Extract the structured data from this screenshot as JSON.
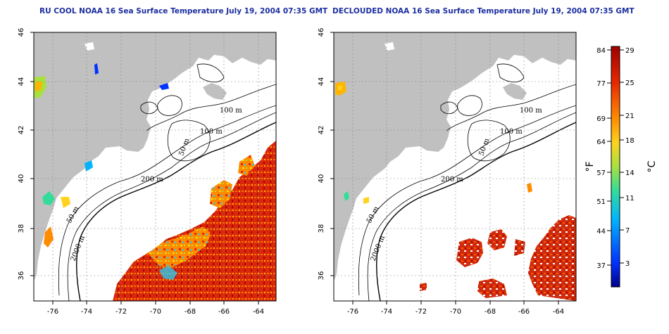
{
  "maps": {
    "left": {
      "title": "RU COOL NOAA 16 Sea Surface Temperature July 19, 2004 07:35 GMT",
      "contour_labels": [
        "100 m",
        "100 m",
        "50 m",
        "200 m",
        "50 m",
        "2000 m"
      ]
    },
    "right": {
      "title": "DECLOUDED NOAA 16 Sea Surface Temperature July 19, 2004 07:35 GMT",
      "contour_labels": [
        "100 m",
        "100 m",
        "50 m",
        "200 m",
        "50 m",
        "2000 m"
      ]
    },
    "axes": {
      "lon_ticks": [
        "-76",
        "-74",
        "-72",
        "-70",
        "-68",
        "-66",
        "-64"
      ],
      "lat_ticks": [
        "36",
        "38",
        "40",
        "42",
        "44",
        "46"
      ]
    }
  },
  "colorbar": {
    "f_ticks": [
      "84",
      "77",
      "69",
      "64",
      "57",
      "51",
      "44",
      "37"
    ],
    "c_ticks": [
      "29",
      "25",
      "21",
      "18",
      "14",
      "11",
      "7",
      "3"
    ],
    "f_label": "°F",
    "c_label": "°C",
    "colors": [
      "#00008c",
      "#0032ff",
      "#00b4ff",
      "#33dd99",
      "#a8e040",
      "#ffd21e",
      "#ff8c00",
      "#e82800",
      "#a00000"
    ]
  },
  "colors": {
    "land": "#c0c0c0",
    "title": "#1c2fa0",
    "warm_water": "#d82a10"
  }
}
